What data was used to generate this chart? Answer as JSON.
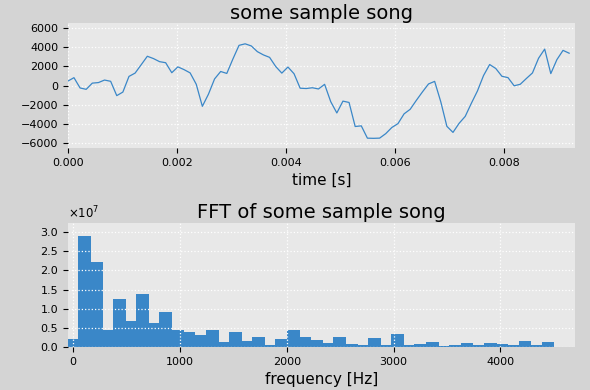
{
  "title_top": "some sample song",
  "title_bottom": "FFT of some sample song",
  "xlabel_top": "time [s]",
  "xlabel_bottom": "frequency [Hz]",
  "top_bg": "#e8e8e8",
  "bottom_bg": "#e8e8e8",
  "fig_bg": "#d4d4d4",
  "line_color": "#3a87c8",
  "bar_color": "#3a87c8",
  "title_fontsize": 14,
  "label_fontsize": 11,
  "sample_rate": 9000,
  "duration": 0.0093,
  "seed": 7
}
